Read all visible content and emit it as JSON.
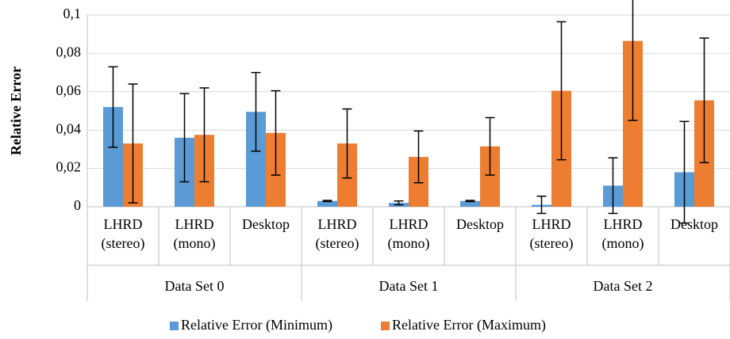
{
  "chart_data": {
    "type": "bar",
    "y_label": "Relative Error",
    "ylim": [
      0,
      0.1
    ],
    "yticks": [
      0,
      {
        "value": 0.02,
        "label": "0,02"
      },
      {
        "value": 0.04,
        "label": "0,04"
      },
      {
        "value": 0.06,
        "label": "0,06"
      },
      {
        "value": 0.08,
        "label": "0,08"
      },
      {
        "value": 0.1,
        "label": "0,1"
      }
    ],
    "grid": true,
    "legend": "bottom",
    "groups": [
      {
        "name": "Data Set 0",
        "categories": [
          "LHRD (stereo)",
          "LHRD (mono)",
          "Desktop"
        ]
      },
      {
        "name": "Data Set 1",
        "categories": [
          "LHRD (stereo)",
          "LHRD (mono)",
          "Desktop"
        ]
      },
      {
        "name": "Data Set 2",
        "categories": [
          "LHRD (stereo)",
          "LHRD (mono)",
          "Desktop"
        ]
      }
    ],
    "series": [
      {
        "name": "Relative Error (Minimum)",
        "color": "#5b9bd5",
        "values": [
          0.052,
          0.036,
          0.0495,
          0.003,
          0.002,
          0.003,
          0.001,
          0.011,
          0.018
        ],
        "errors": [
          0.021,
          0.023,
          0.0205,
          0.0003,
          0.001,
          0.0003,
          0.0045,
          0.0145,
          0.0265
        ]
      },
      {
        "name": "Relative Error (Maximum)",
        "color": "#ed7d31",
        "values": [
          0.033,
          0.0375,
          0.0385,
          0.033,
          0.026,
          0.0315,
          0.0605,
          0.0865,
          0.0555
        ],
        "errors": [
          0.031,
          0.0245,
          0.022,
          0.018,
          0.0135,
          0.015,
          0.036,
          0.0415,
          0.0325
        ]
      }
    ]
  }
}
